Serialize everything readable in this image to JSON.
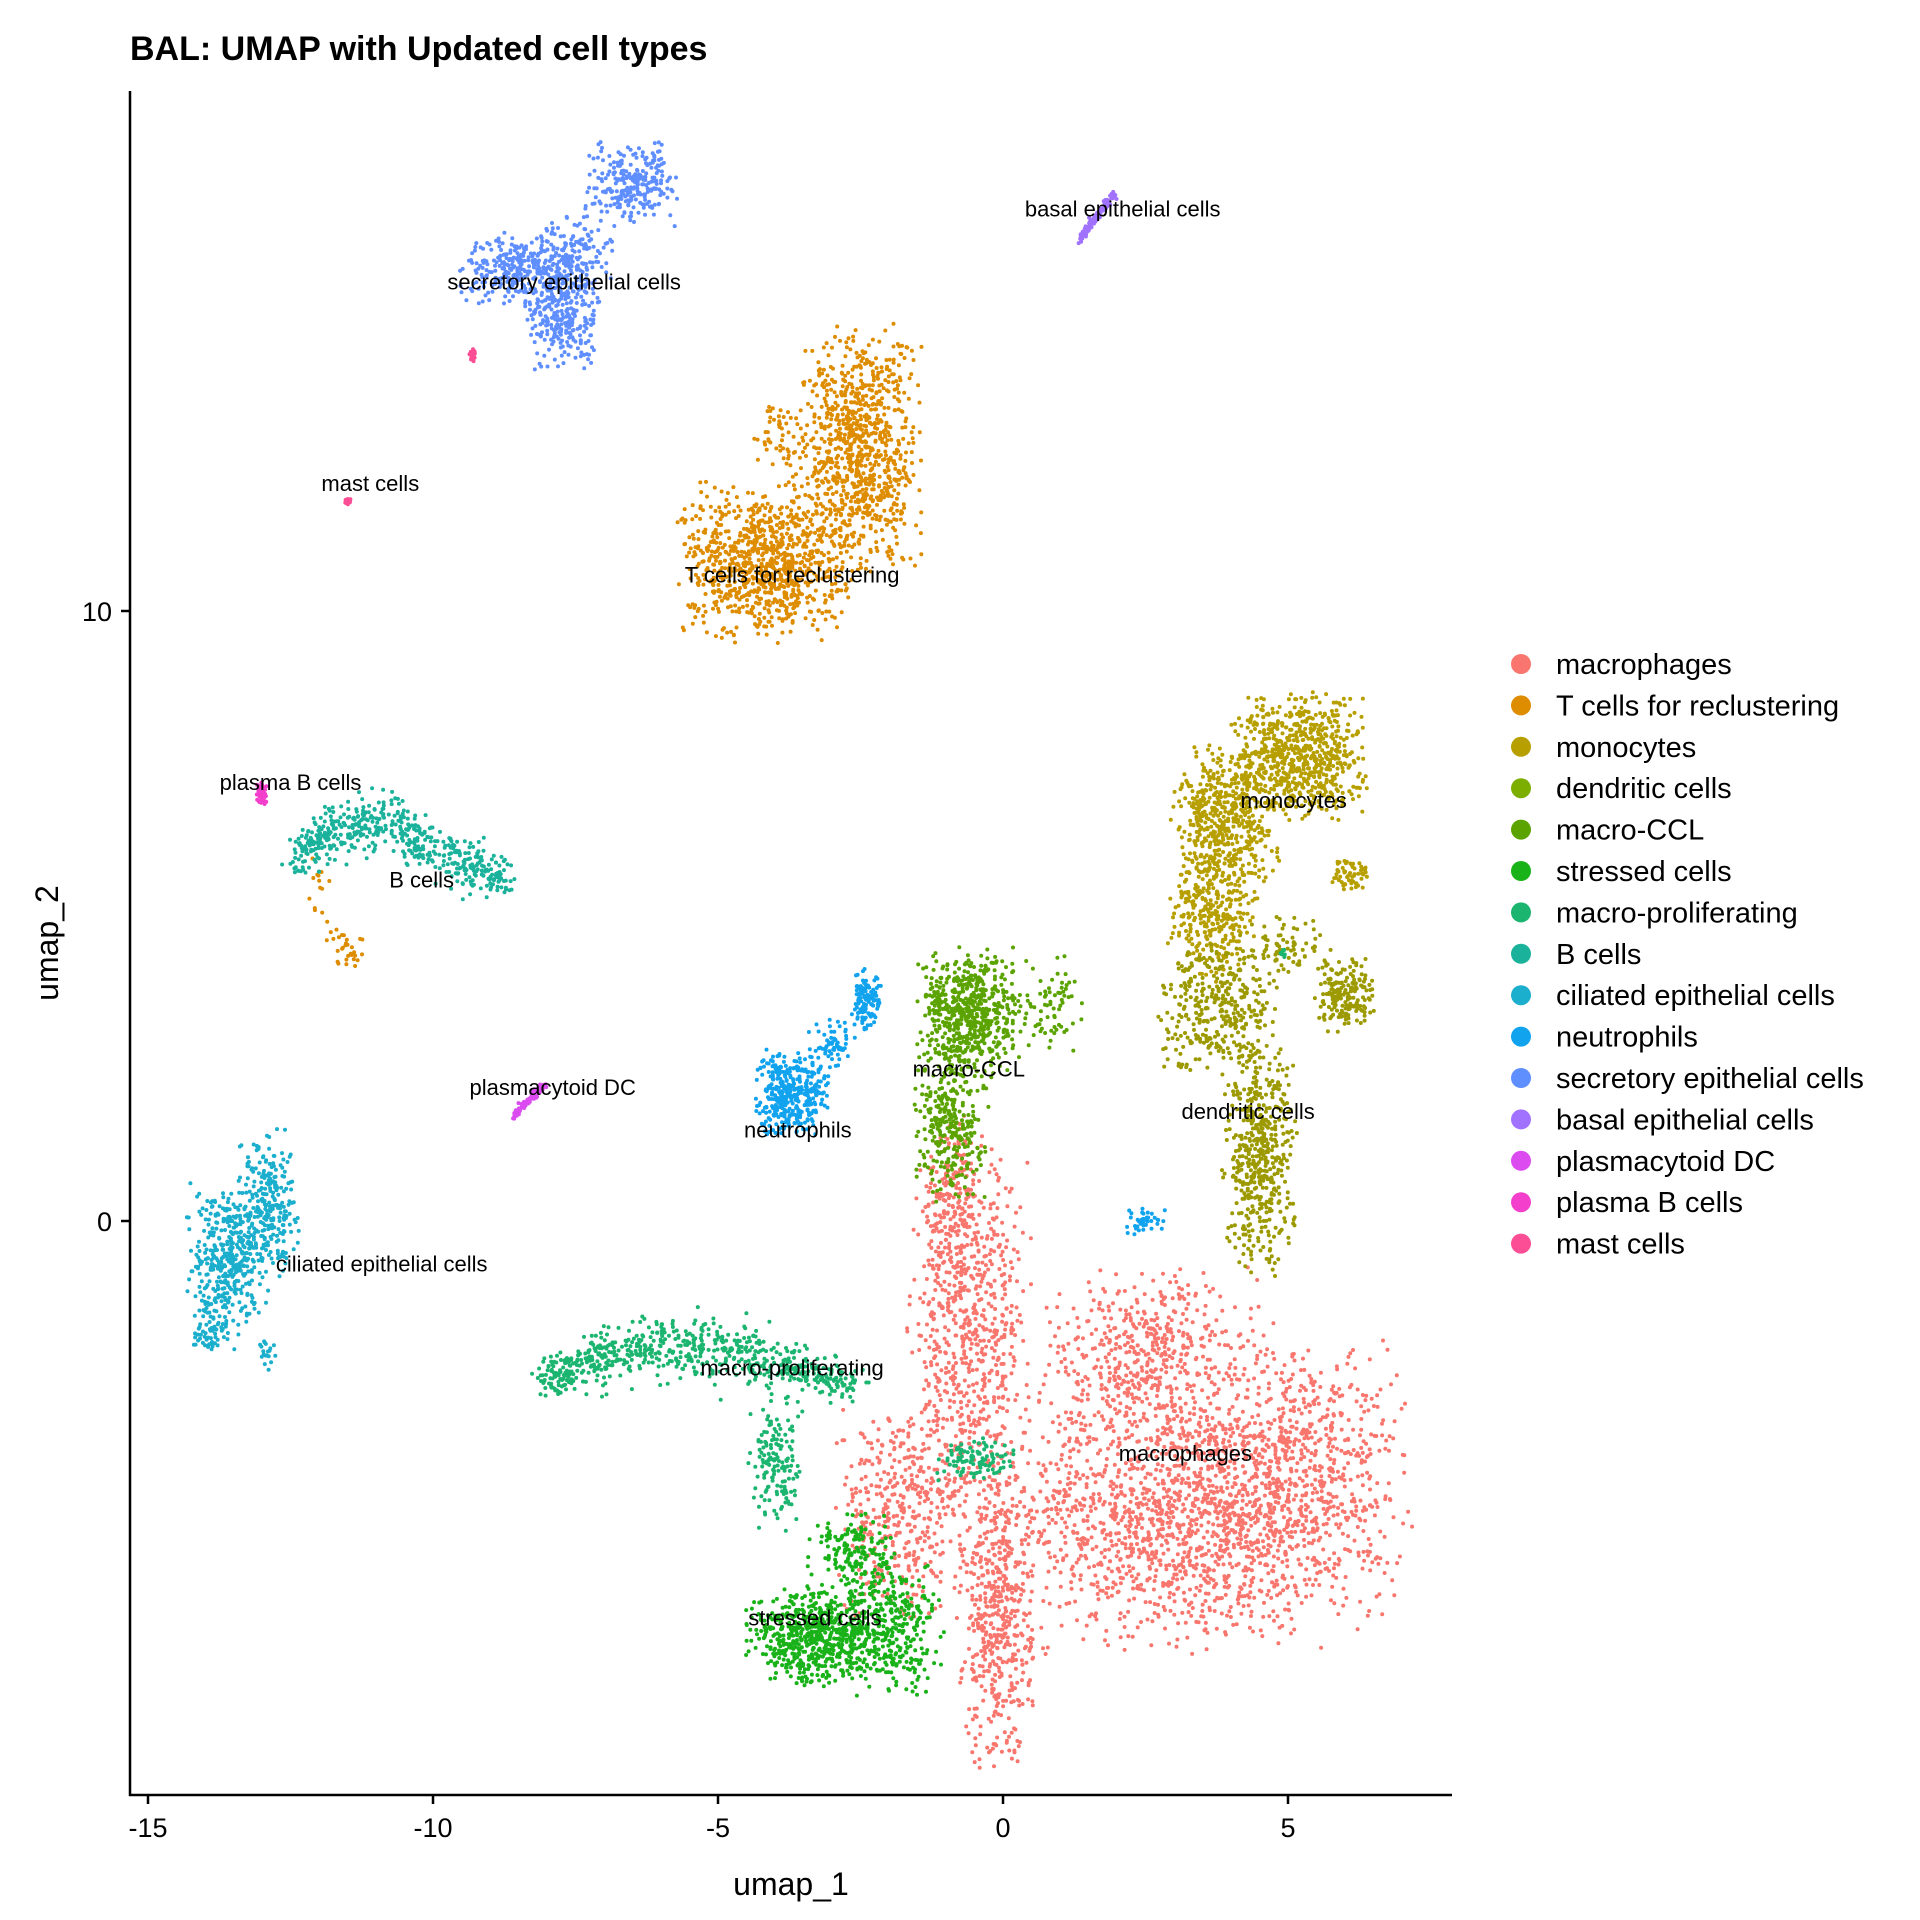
{
  "chart_data": {
    "type": "scatter",
    "title": "BAL: UMAP with Updated cell types",
    "xlabel": "umap_1",
    "ylabel": "umap_2",
    "xlim": [
      -15.3,
      7.9
    ],
    "ylim": [
      -9.4,
      18.5
    ],
    "x_ticks": [
      -15,
      -10,
      -5,
      0,
      5
    ],
    "y_ticks": [
      0,
      10
    ],
    "grid": false,
    "legend_position": "right",
    "series": [
      {
        "name": "macrophages",
        "color": "#F8766D",
        "label_pos": [
          3.2,
          -3.8
        ],
        "blobs": [
          [
            3.0,
            -4.8,
            2.6,
            1.9,
            1500
          ],
          [
            5.3,
            -4.2,
            1.6,
            2.1,
            700
          ],
          [
            2.5,
            -2.2,
            1.8,
            1.2,
            500
          ],
          [
            -0.6,
            -1.8,
            0.9,
            2.6,
            700
          ],
          [
            -0.1,
            -6.5,
            0.55,
            2.2,
            500
          ],
          [
            -1.8,
            -4.8,
            1.0,
            1.5,
            400
          ],
          [
            -0.9,
            0.4,
            0.45,
            1.2,
            150
          ]
        ]
      },
      {
        "name": "T cells for reclustering",
        "color": "#DE8C00",
        "label_pos": [
          -3.7,
          10.6
        ],
        "blobs": [
          [
            -4.2,
            10.8,
            1.25,
            1.1,
            900
          ],
          [
            -2.5,
            12.6,
            0.9,
            1.8,
            900
          ],
          [
            -3.9,
            12.8,
            0.5,
            0.6,
            60
          ],
          [
            -11.5,
            4.5,
            0.3,
            0.3,
            30
          ],
          [
            -12.0,
            5.6,
            0.2,
            0.6,
            15
          ]
        ]
      },
      {
        "name": "monocytes",
        "color": "#B79F00",
        "label_pos": [
          5.1,
          6.9
        ],
        "blobs": [
          [
            5.2,
            7.6,
            1.0,
            0.9,
            700
          ],
          [
            3.9,
            6.6,
            0.8,
            1.0,
            500
          ],
          [
            3.7,
            5.0,
            0.7,
            0.9,
            300
          ],
          [
            6.1,
            5.7,
            0.3,
            0.25,
            60
          ]
        ]
      },
      {
        "name": "dendritic cells",
        "color": "#7CAE00",
        "label_pos": [
          4.3,
          1.8
        ],
        "blobs": [
          [
            4.5,
            1.0,
            0.55,
            1.6,
            500
          ],
          [
            3.8,
            3.5,
            0.9,
            0.9,
            350
          ],
          [
            6.0,
            3.7,
            0.45,
            0.55,
            180
          ],
          [
            5.0,
            4.5,
            0.7,
            0.4,
            80
          ]
        ],
        "marker_color": "#9C9A00"
      },
      {
        "name": "macro-CCL",
        "color": "#5BA300",
        "label_pos": [
          -0.6,
          2.5
        ],
        "blobs": [
          [
            -0.6,
            3.4,
            0.75,
            0.9,
            600
          ],
          [
            -0.9,
            1.6,
            0.55,
            1.1,
            300
          ],
          [
            0.8,
            3.5,
            0.6,
            0.7,
            80
          ]
        ],
        "marker_color": "#5BA300"
      },
      {
        "name": "stressed cells",
        "color": "#19B219",
        "label_pos": [
          -3.3,
          -6.5
        ],
        "blobs": [
          [
            -3.3,
            -6.8,
            1.0,
            0.7,
            600
          ],
          [
            -2.0,
            -6.7,
            0.8,
            0.9,
            350
          ],
          [
            -2.6,
            -5.4,
            0.7,
            0.5,
            150
          ]
        ]
      },
      {
        "name": "macro-proliferating",
        "color": "#1BB570",
        "label_pos": [
          -3.7,
          -2.4
        ],
        "arc": [
          [
            -8.1,
            -2.6
          ],
          [
            -7.0,
            -2.2
          ],
          [
            -5.5,
            -2.0
          ],
          [
            -4.0,
            -2.3
          ],
          [
            -2.6,
            -2.7
          ]
        ],
        "arc_n": 700,
        "blobs": [
          [
            -4.0,
            -4.0,
            0.4,
            0.9,
            150
          ],
          [
            -0.5,
            -3.9,
            0.6,
            0.3,
            100
          ],
          [
            4.9,
            4.4,
            0.08,
            0.08,
            10
          ]
        ]
      },
      {
        "name": "B cells",
        "color": "#1BB29C",
        "label_pos": [
          -10.2,
          5.6
        ],
        "arc": [
          [
            -12.4,
            5.9
          ],
          [
            -11.8,
            6.4
          ],
          [
            -10.8,
            6.5
          ],
          [
            -9.8,
            6.0
          ],
          [
            -8.7,
            5.6
          ]
        ],
        "arc_n": 550
      },
      {
        "name": "ciliated epithelial cells",
        "color": "#1BAECD",
        "label_pos": [
          -10.9,
          -0.7
        ],
        "blobs": [
          [
            -13.6,
            -0.6,
            0.6,
            1.1,
            400
          ],
          [
            -12.9,
            0.3,
            0.45,
            1.0,
            250
          ],
          [
            -13.9,
            -1.8,
            0.35,
            0.3,
            60
          ],
          [
            -12.9,
            -2.2,
            0.15,
            0.3,
            20
          ]
        ]
      },
      {
        "name": "neutrophils",
        "color": "#12A3EF",
        "label_pos": [
          -3.6,
          1.5
        ],
        "blobs": [
          [
            -3.7,
            2.1,
            0.55,
            0.6,
            400
          ],
          [
            -2.4,
            3.6,
            0.22,
            0.45,
            120
          ],
          [
            -3.0,
            2.9,
            0.35,
            0.35,
            60
          ],
          [
            2.5,
            0.0,
            0.3,
            0.2,
            40
          ]
        ]
      },
      {
        "name": "secretory epithelial cells",
        "color": "#5F8EFF",
        "label_pos": [
          -7.7,
          15.4
        ],
        "blobs": [
          [
            -8.5,
            15.6,
            0.9,
            0.5,
            300
          ],
          [
            -7.7,
            14.8,
            0.6,
            0.7,
            250
          ],
          [
            -6.5,
            17.0,
            0.7,
            0.6,
            250
          ],
          [
            -7.5,
            15.8,
            0.6,
            0.6,
            150
          ]
        ]
      },
      {
        "name": "basal epithelial cells",
        "color": "#A072FF",
        "label_pos": [
          2.1,
          16.6
        ],
        "line": [
          [
            1.35,
            16.1
          ],
          [
            1.95,
            16.85
          ]
        ],
        "line_n": 120
      },
      {
        "name": "plasmacytoid DC",
        "color": "#DB4BF0",
        "label_pos": [
          -7.9,
          2.2
        ],
        "line": [
          [
            -8.6,
            1.7
          ],
          [
            -8.05,
            2.25
          ]
        ],
        "line_n": 100
      },
      {
        "name": "plasma B cells",
        "color": "#F33FCB",
        "label_pos": [
          -12.5,
          7.2
        ],
        "blobs": [
          [
            -13.0,
            7.0,
            0.08,
            0.2,
            50
          ]
        ]
      },
      {
        "name": "mast cells",
        "color": "#FC4E95",
        "label_pos": [
          -11.1,
          12.1
        ],
        "blobs": [
          [
            -11.5,
            11.8,
            0.05,
            0.05,
            20
          ],
          [
            -9.3,
            14.2,
            0.05,
            0.1,
            25
          ]
        ]
      }
    ]
  }
}
